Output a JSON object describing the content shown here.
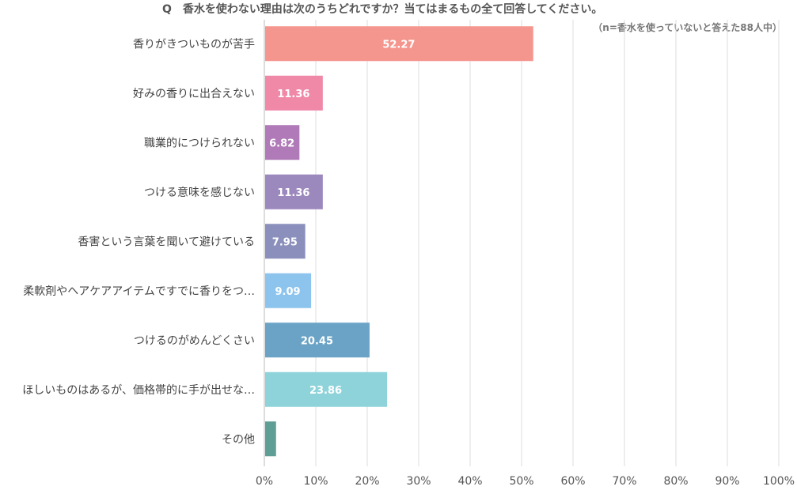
{
  "chart_data": {
    "type": "bar",
    "orientation": "horizontal",
    "title": "Q　香水を使わない理由は次のうちどれですか？当てはまるもの全て回答してください。",
    "note": "（n=香水を使っていないと答えた88人中）",
    "categories": [
      "香りがきついものが苦手",
      "好みの香りに出合えない",
      "職業的につけられない",
      "つける意味を感じない",
      "香害という言葉を聞いて避けている",
      "柔軟剤やヘアケアアイテムですでに香りをつ…",
      "つけるのがめんどくさい",
      "ほしいものはあるが、価格帯的に手が出せな…",
      "その他"
    ],
    "values": [
      52.27,
      11.36,
      6.82,
      11.36,
      7.95,
      9.09,
      20.45,
      23.86,
      2.27
    ],
    "value_labels": [
      "52.27",
      "11.36",
      "6.82",
      "11.36",
      "7.95",
      "9.09",
      "20.45",
      "23.86",
      ""
    ],
    "colors": [
      "#f5968e",
      "#f088a8",
      "#b07ab8",
      "#9b88bd",
      "#8a90bb",
      "#8cc4ee",
      "#6aa3c6",
      "#8fd3da",
      "#5f9e95"
    ],
    "xlim": [
      0,
      100
    ],
    "xticks": [
      "0%",
      "10%",
      "20%",
      "30%",
      "40%",
      "50%",
      "60%",
      "70%",
      "80%",
      "90%",
      "100%"
    ],
    "grid": true,
    "legend": "none"
  }
}
